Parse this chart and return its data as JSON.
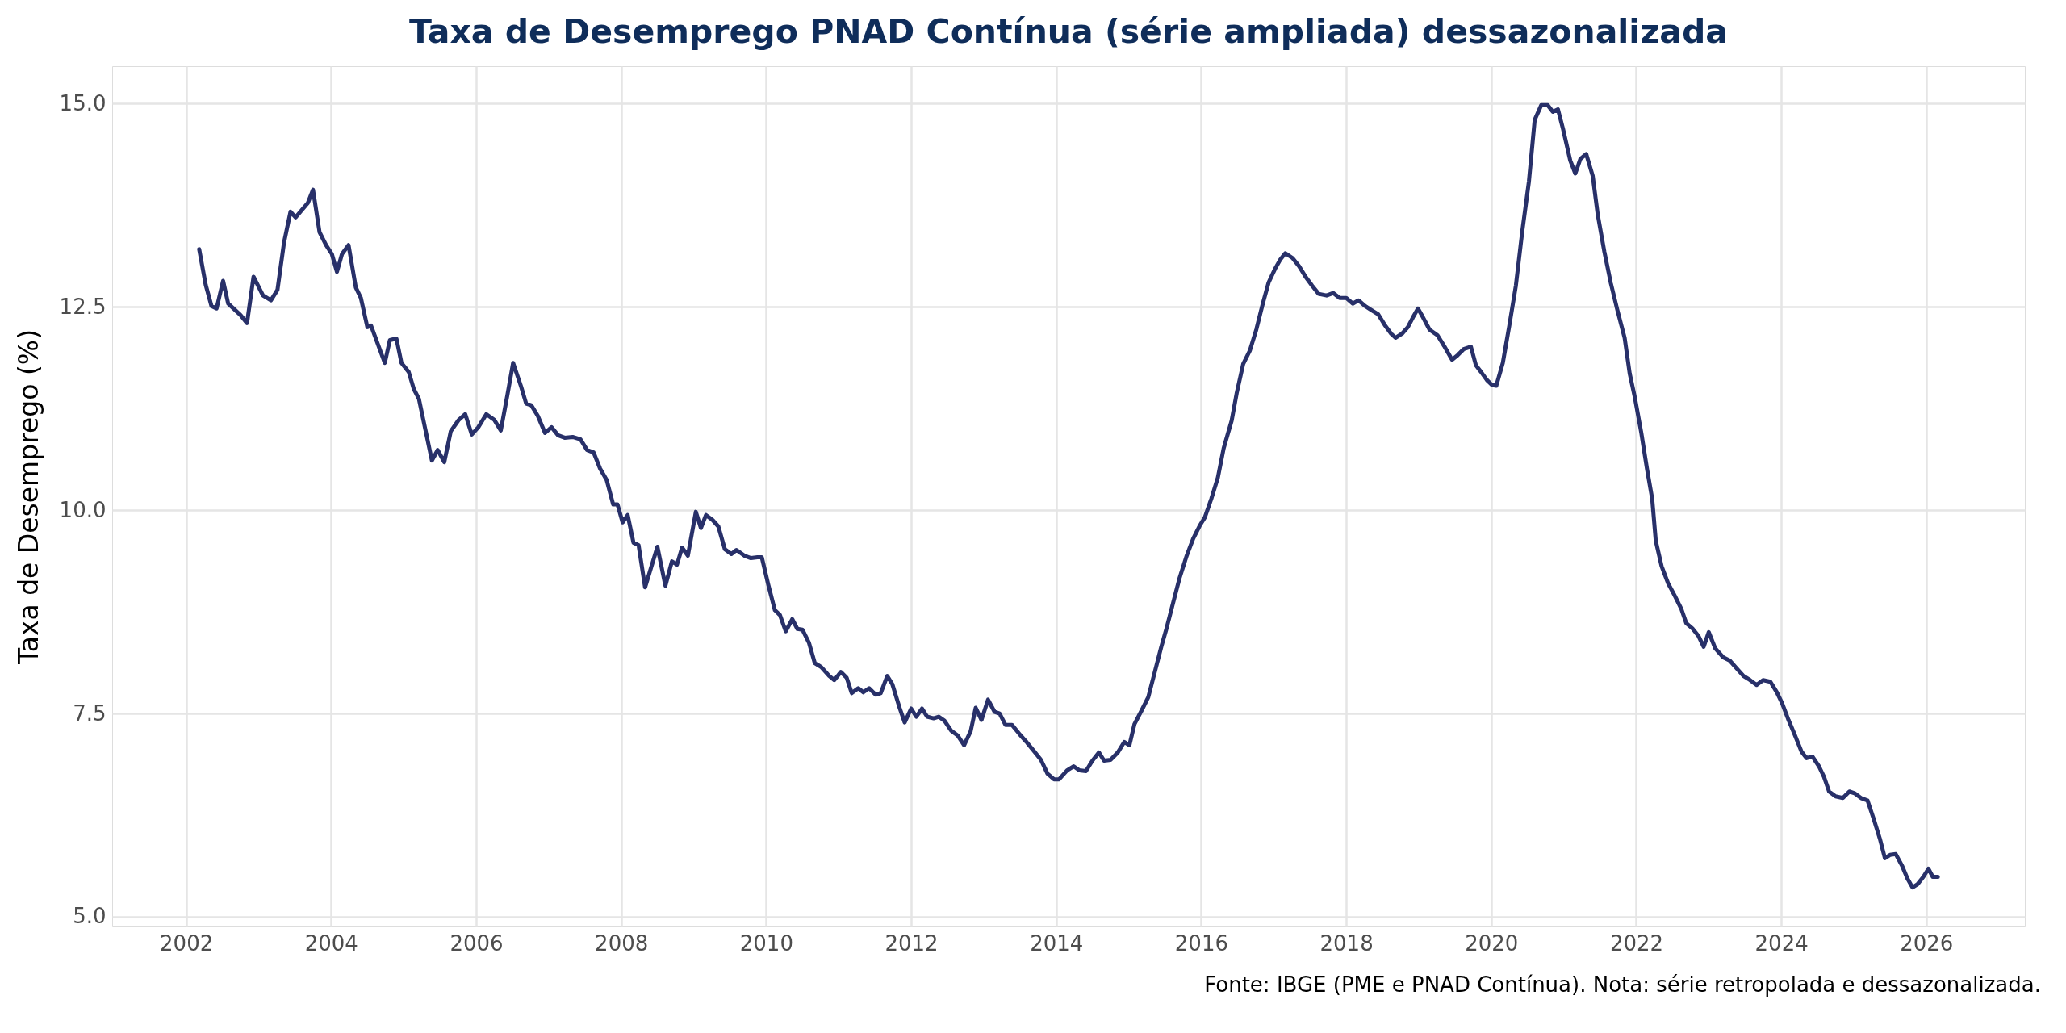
{
  "chart_data": {
    "type": "line",
    "title": "Taxa de Desemprego PNAD Contínua (série ampliada) dessazonalizada",
    "ylabel": "Taxa de Desemprego (%)",
    "annotations": [
      "Fonte: IBGE (PME e PNAD Contínua). Nota: série retropolada e dessazonalizada."
    ],
    "xlim": [
      2000.98,
      2027.36
    ],
    "xticks": [
      2002,
      2004,
      2006,
      2008,
      2010,
      2012,
      2014,
      2016,
      2018,
      2020,
      2022,
      2024,
      2026
    ],
    "ylim": [
      4.88,
      15.46
    ],
    "yticks": [
      {
        "value": 5,
        "label": "5.0"
      },
      7.5,
      {
        "value": 10,
        "label": "10.0"
      },
      12.5,
      {
        "value": 15,
        "label": "15.0"
      }
    ],
    "grid": true,
    "legend": false,
    "line_style": "solid",
    "marker": "none",
    "series": [
      {
        "color": "#283069",
        "x": [
          2002.18,
          2002.27,
          2002.35,
          2002.42,
          2002.51,
          2002.58,
          2002.75,
          2002.84,
          2002.93,
          2003.06,
          2003.17,
          2003.26,
          2003.35,
          2003.44,
          2003.51,
          2003.68,
          2003.75,
          2003.84,
          2003.93,
          2004.01,
          2004.08,
          2004.15,
          2004.24,
          2004.34,
          2004.41,
          2004.5,
          2004.55,
          2004.74,
          2004.81,
          2004.9,
          2004.97,
          2005.07,
          2005.14,
          2005.21,
          2005.39,
          2005.47,
          2005.56,
          2005.65,
          2005.76,
          2005.85,
          2005.94,
          2006.03,
          2006.14,
          2006.25,
          2006.34,
          2006.43,
          2006.51,
          2006.62,
          2006.69,
          2006.76,
          2006.85,
          2006.95,
          2007.04,
          2007.13,
          2007.22,
          2007.33,
          2007.44,
          2007.53,
          2007.62,
          2007.71,
          2007.8,
          2007.89,
          2007.95,
          2008.02,
          2008.09,
          2008.17,
          2008.24,
          2008.33,
          2008.5,
          2008.61,
          2008.7,
          2008.77,
          2008.84,
          2008.92,
          2009.03,
          2009.1,
          2009.17,
          2009.26,
          2009.34,
          2009.43,
          2009.52,
          2009.59,
          2009.7,
          2009.79,
          2009.88,
          2009.94,
          2010.03,
          2010.12,
          2010.19,
          2010.27,
          2010.36,
          2010.43,
          2010.5,
          2010.59,
          2010.67,
          2010.76,
          2010.87,
          2010.94,
          2011.03,
          2011.11,
          2011.18,
          2011.27,
          2011.34,
          2011.42,
          2011.51,
          2011.58,
          2011.67,
          2011.74,
          2011.84,
          2011.91,
          2012.0,
          2012.07,
          2012.15,
          2012.22,
          2012.31,
          2012.38,
          2012.46,
          2012.55,
          2012.64,
          2012.73,
          2012.82,
          2012.89,
          2012.97,
          2013.06,
          2013.15,
          2013.22,
          2013.3,
          2013.39,
          2013.5,
          2013.59,
          2013.7,
          2013.79,
          2013.88,
          2013.97,
          2014.04,
          2014.15,
          2014.24,
          2014.32,
          2014.41,
          2014.5,
          2014.59,
          2014.66,
          2014.75,
          2014.85,
          2014.94,
          2015.01,
          2015.08,
          2015.18,
          2015.27,
          2015.36,
          2015.45,
          2015.52,
          2015.61,
          2015.7,
          2015.8,
          2015.89,
          2015.98,
          2016.05,
          2016.14,
          2016.23,
          2016.31,
          2016.42,
          2016.49,
          2016.58,
          2016.67,
          2016.76,
          2016.85,
          2016.93,
          2017.02,
          2017.09,
          2017.16,
          2017.26,
          2017.35,
          2017.44,
          2017.53,
          2017.62,
          2017.73,
          2017.82,
          2017.91,
          2018.0,
          2018.09,
          2018.17,
          2018.26,
          2018.35,
          2018.44,
          2018.53,
          2018.62,
          2018.68,
          2018.77,
          2018.85,
          2018.92,
          2018.99,
          2019.06,
          2019.15,
          2019.26,
          2019.35,
          2019.46,
          2019.53,
          2019.62,
          2019.72,
          2019.79,
          2019.86,
          2019.94,
          2020.01,
          2020.07,
          2020.16,
          2020.25,
          2020.34,
          2020.43,
          2020.52,
          2020.6,
          2020.69,
          2020.78,
          2020.85,
          2020.92,
          2020.99,
          2021.09,
          2021.16,
          2021.23,
          2021.31,
          2021.4,
          2021.47,
          2021.56,
          2021.65,
          2021.74,
          2021.84,
          2021.91,
          2021.98,
          2022.07,
          2022.15,
          2022.22,
          2022.27,
          2022.35,
          2022.44,
          2022.53,
          2022.62,
          2022.69,
          2022.78,
          2022.86,
          2022.93,
          2023.0,
          2023.09,
          2023.2,
          2023.29,
          2023.38,
          2023.48,
          2023.57,
          2023.66,
          2023.75,
          2023.85,
          2023.94,
          2024.01,
          2024.1,
          2024.19,
          2024.28,
          2024.35,
          2024.43,
          2024.52,
          2024.59,
          2024.66,
          2024.75,
          2024.85,
          2024.94,
          2025.01,
          2025.1,
          2025.19,
          2025.28,
          2025.36,
          2025.43,
          2025.5,
          2025.58,
          2025.67,
          2025.74,
          2025.81,
          2025.88,
          2025.96,
          2026.03,
          2026.09,
          2026.16
        ],
        "values": [
          13.21,
          12.77,
          12.51,
          12.48,
          12.82,
          12.54,
          12.4,
          12.3,
          12.87,
          12.64,
          12.58,
          12.71,
          13.29,
          13.67,
          13.6,
          13.78,
          13.94,
          13.42,
          13.26,
          13.15,
          12.93,
          13.15,
          13.26,
          12.74,
          12.61,
          12.25,
          12.27,
          11.81,
          12.09,
          12.11,
          11.81,
          11.7,
          11.49,
          11.37,
          10.61,
          10.74,
          10.59,
          10.97,
          11.11,
          11.18,
          10.93,
          11.02,
          11.18,
          11.11,
          10.98,
          11.41,
          11.81,
          11.52,
          11.31,
          11.29,
          11.16,
          10.95,
          11.02,
          10.92,
          10.89,
          10.9,
          10.87,
          10.74,
          10.71,
          10.51,
          10.37,
          10.07,
          10.07,
          9.85,
          9.94,
          9.6,
          9.57,
          9.05,
          9.55,
          9.07,
          9.37,
          9.33,
          9.54,
          9.44,
          9.98,
          9.78,
          9.94,
          9.88,
          9.8,
          9.52,
          9.46,
          9.51,
          9.44,
          9.41,
          9.42,
          9.42,
          9.08,
          8.77,
          8.71,
          8.51,
          8.66,
          8.54,
          8.53,
          8.37,
          8.12,
          8.07,
          7.96,
          7.91,
          8.01,
          7.94,
          7.75,
          7.81,
          7.76,
          7.81,
          7.73,
          7.75,
          7.96,
          7.86,
          7.57,
          7.39,
          7.56,
          7.46,
          7.56,
          7.46,
          7.44,
          7.46,
          7.41,
          7.29,
          7.23,
          7.11,
          7.28,
          7.57,
          7.42,
          7.67,
          7.52,
          7.5,
          7.36,
          7.36,
          7.24,
          7.15,
          7.03,
          6.93,
          6.76,
          6.69,
          6.69,
          6.8,
          6.85,
          6.8,
          6.79,
          6.92,
          7.02,
          6.92,
          6.93,
          7.02,
          7.15,
          7.11,
          7.37,
          7.54,
          7.7,
          8.01,
          8.32,
          8.54,
          8.85,
          9.16,
          9.44,
          9.65,
          9.81,
          9.91,
          10.14,
          10.4,
          10.76,
          11.1,
          11.44,
          11.8,
          11.96,
          12.22,
          12.54,
          12.8,
          12.97,
          13.08,
          13.16,
          13.1,
          13.0,
          12.87,
          12.76,
          12.66,
          12.64,
          12.67,
          12.61,
          12.61,
          12.54,
          12.58,
          12.51,
          12.46,
          12.41,
          12.28,
          12.17,
          12.12,
          12.17,
          12.25,
          12.37,
          12.48,
          12.37,
          12.22,
          12.15,
          12.02,
          11.85,
          11.9,
          11.98,
          12.01,
          11.78,
          11.7,
          11.6,
          11.54,
          11.53,
          11.81,
          12.27,
          12.76,
          13.44,
          14.04,
          14.8,
          14.98,
          14.98,
          14.9,
          14.93,
          14.69,
          14.3,
          14.14,
          14.32,
          14.38,
          14.11,
          13.63,
          13.18,
          12.79,
          12.46,
          12.12,
          11.68,
          11.39,
          10.95,
          10.5,
          10.14,
          9.62,
          9.31,
          9.1,
          8.95,
          8.79,
          8.61,
          8.54,
          8.45,
          8.32,
          8.5,
          8.3,
          8.19,
          8.15,
          8.06,
          7.96,
          7.91,
          7.85,
          7.91,
          7.89,
          7.76,
          7.63,
          7.42,
          7.23,
          7.03,
          6.95,
          6.97,
          6.85,
          6.72,
          6.54,
          6.48,
          6.46,
          6.54,
          6.52,
          6.46,
          6.43,
          6.19,
          5.96,
          5.72,
          5.76,
          5.77,
          5.62,
          5.47,
          5.36,
          5.4,
          5.49,
          5.59,
          5.49,
          5.49
        ]
      }
    ]
  }
}
